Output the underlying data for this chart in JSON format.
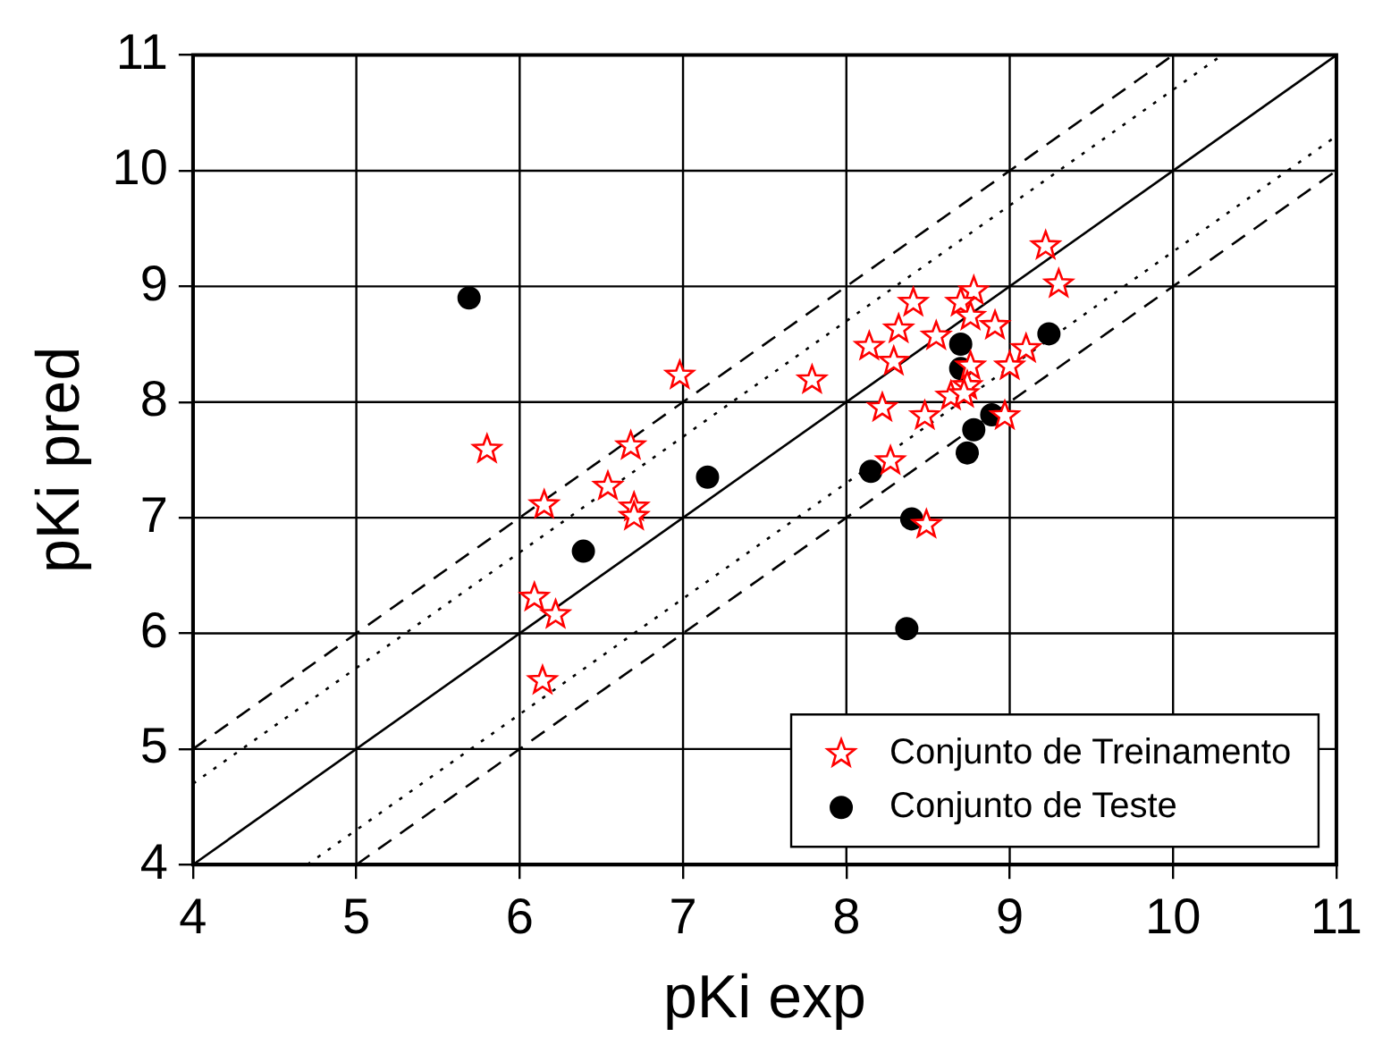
{
  "chart_data": {
    "type": "scatter",
    "xlabel": "pKi exp",
    "ylabel": "pKi pred",
    "xlim": [
      4,
      11
    ],
    "ylim": [
      4,
      11
    ],
    "xticks": [
      4,
      5,
      6,
      7,
      8,
      9,
      10,
      11
    ],
    "yticks": [
      4,
      5,
      6,
      7,
      8,
      9,
      10,
      11
    ],
    "grid": true,
    "legend": "bottom right",
    "series": [
      {
        "name": "Conjunto de Treinamento",
        "color": "#ff0000",
        "marker": "star",
        "x": [
          9.22,
          9.3,
          8.78,
          8.7,
          8.76,
          8.91,
          8.41,
          8.32,
          8.55,
          8.14,
          8.29,
          7.79,
          9.1,
          9.0,
          8.76,
          8.74,
          8.64,
          8.72,
          8.22,
          8.48,
          8.97,
          8.27,
          8.49,
          6.98,
          5.8,
          6.68,
          6.54,
          6.15,
          6.7,
          6.7,
          6.09,
          6.22,
          6.14
        ],
        "values": [
          9.35,
          9.02,
          8.96,
          8.86,
          8.74,
          8.66,
          8.86,
          8.63,
          8.57,
          8.48,
          8.35,
          8.19,
          8.46,
          8.31,
          8.31,
          8.14,
          8.05,
          8.07,
          7.95,
          7.88,
          7.88,
          7.49,
          6.94,
          8.23,
          7.59,
          7.62,
          7.27,
          7.11,
          7.09,
          7.01,
          6.31,
          6.16,
          5.59
        ]
      },
      {
        "name": "Conjunto de Teste",
        "color": "#000000",
        "marker": "circle",
        "x": [
          5.69,
          6.39,
          7.15,
          8.7,
          8.7,
          9.24,
          8.89,
          8.78,
          8.74,
          8.15,
          8.4,
          8.37
        ],
        "values": [
          8.9,
          6.71,
          7.35,
          8.5,
          8.29,
          8.59,
          7.89,
          7.76,
          7.56,
          7.4,
          6.99,
          6.04
        ]
      },
      {
        "type": "line",
        "color": "#000000",
        "marker": "none",
        "line_style": "solid",
        "x": [
          4,
          11
        ],
        "values": [
          4,
          11
        ]
      },
      {
        "type": "line",
        "color": "#000000",
        "marker": "none",
        "line_style": "dotted",
        "x": [
          4,
          10.3
        ],
        "values": [
          4.7,
          11
        ]
      },
      {
        "type": "line",
        "color": "#000000",
        "marker": "none",
        "line_style": "dotted",
        "x": [
          4.7,
          11
        ],
        "values": [
          4,
          10.3
        ]
      },
      {
        "type": "line",
        "color": "#000000",
        "marker": "none",
        "line_style": "dashed",
        "x": [
          4,
          10
        ],
        "values": [
          5,
          11
        ]
      },
      {
        "type": "line",
        "color": "#000000",
        "marker": "none",
        "line_style": "dashed",
        "x": [
          5,
          11
        ],
        "values": [
          4,
          10
        ]
      }
    ]
  }
}
